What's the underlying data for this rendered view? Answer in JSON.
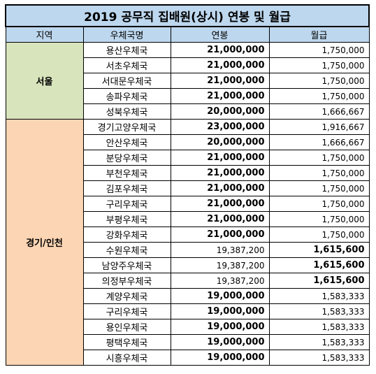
{
  "title": "2019 공무직 집배원(상시) 연봉 및 월급",
  "headers": {
    "region": "지역",
    "office": "우체국명",
    "annual": "연봉",
    "monthly": "월급"
  },
  "groups": [
    {
      "region": "서울",
      "rows": [
        {
          "office": "용산우체국",
          "annual": "21,000,000",
          "monthly": "1,750,000",
          "bold_annual": true,
          "bold_monthly": false
        },
        {
          "office": "서초우체국",
          "annual": "21,000,000",
          "monthly": "1,750,000",
          "bold_annual": true,
          "bold_monthly": false
        },
        {
          "office": "서대문우체국",
          "annual": "21,000,000",
          "monthly": "1,750,000",
          "bold_annual": true,
          "bold_monthly": false
        },
        {
          "office": "송파우체국",
          "annual": "21,000,000",
          "monthly": "1,750,000",
          "bold_annual": true,
          "bold_monthly": false
        },
        {
          "office": "성북우체국",
          "annual": "20,000,000",
          "monthly": "1,666,667",
          "bold_annual": true,
          "bold_monthly": false
        }
      ]
    },
    {
      "region": "경기/인천",
      "rows": [
        {
          "office": "경기고양우체국",
          "annual": "23,000,000",
          "monthly": "1,916,667",
          "bold_annual": true,
          "bold_monthly": false
        },
        {
          "office": "안산우체국",
          "annual": "20,000,000",
          "monthly": "1,666,667",
          "bold_annual": true,
          "bold_monthly": false
        },
        {
          "office": "분당우체국",
          "annual": "21,000,000",
          "monthly": "1,750,000",
          "bold_annual": true,
          "bold_monthly": false
        },
        {
          "office": "부천우체국",
          "annual": "21,000,000",
          "monthly": "1,750,000",
          "bold_annual": true,
          "bold_monthly": false
        },
        {
          "office": "김포우체국",
          "annual": "21,000,000",
          "monthly": "1,750,000",
          "bold_annual": true,
          "bold_monthly": false
        },
        {
          "office": "구리우체국",
          "annual": "21,000,000",
          "monthly": "1,750,000",
          "bold_annual": true,
          "bold_monthly": false
        },
        {
          "office": "부평우체국",
          "annual": "21,000,000",
          "monthly": "1,750,000",
          "bold_annual": true,
          "bold_monthly": false
        },
        {
          "office": "강화우체국",
          "annual": "21,000,000",
          "monthly": "1,750,000",
          "bold_annual": true,
          "bold_monthly": false
        },
        {
          "office": "수원우체국",
          "annual": "19,387,200",
          "monthly": "1,615,600",
          "bold_annual": false,
          "bold_monthly": true
        },
        {
          "office": "남양주우체국",
          "annual": "19,387,200",
          "monthly": "1,615,600",
          "bold_annual": false,
          "bold_monthly": true
        },
        {
          "office": "의정부우체국",
          "annual": "19,387,200",
          "monthly": "1,615,600",
          "bold_annual": false,
          "bold_monthly": true
        },
        {
          "office": "계양우체국",
          "annual": "19,000,000",
          "monthly": "1,583,333",
          "bold_annual": true,
          "bold_monthly": false
        },
        {
          "office": "구리우체국",
          "annual": "19,000,000",
          "monthly": "1,583,333",
          "bold_annual": true,
          "bold_monthly": false
        },
        {
          "office": "용인우체국",
          "annual": "19,000,000",
          "monthly": "1,583,333",
          "bold_annual": true,
          "bold_monthly": false
        },
        {
          "office": "평택우체국",
          "annual": "19,000,000",
          "monthly": "1,583,333",
          "bold_annual": true,
          "bold_monthly": false
        },
        {
          "office": "시흥우체국",
          "annual": "19,000,000",
          "monthly": "1,583,333",
          "bold_annual": true,
          "bold_monthly": false
        }
      ]
    }
  ],
  "colors": {
    "header": "#bdd7ee",
    "seoul": "#d8e4bc",
    "gyeonggi": "#fcd5b4"
  }
}
